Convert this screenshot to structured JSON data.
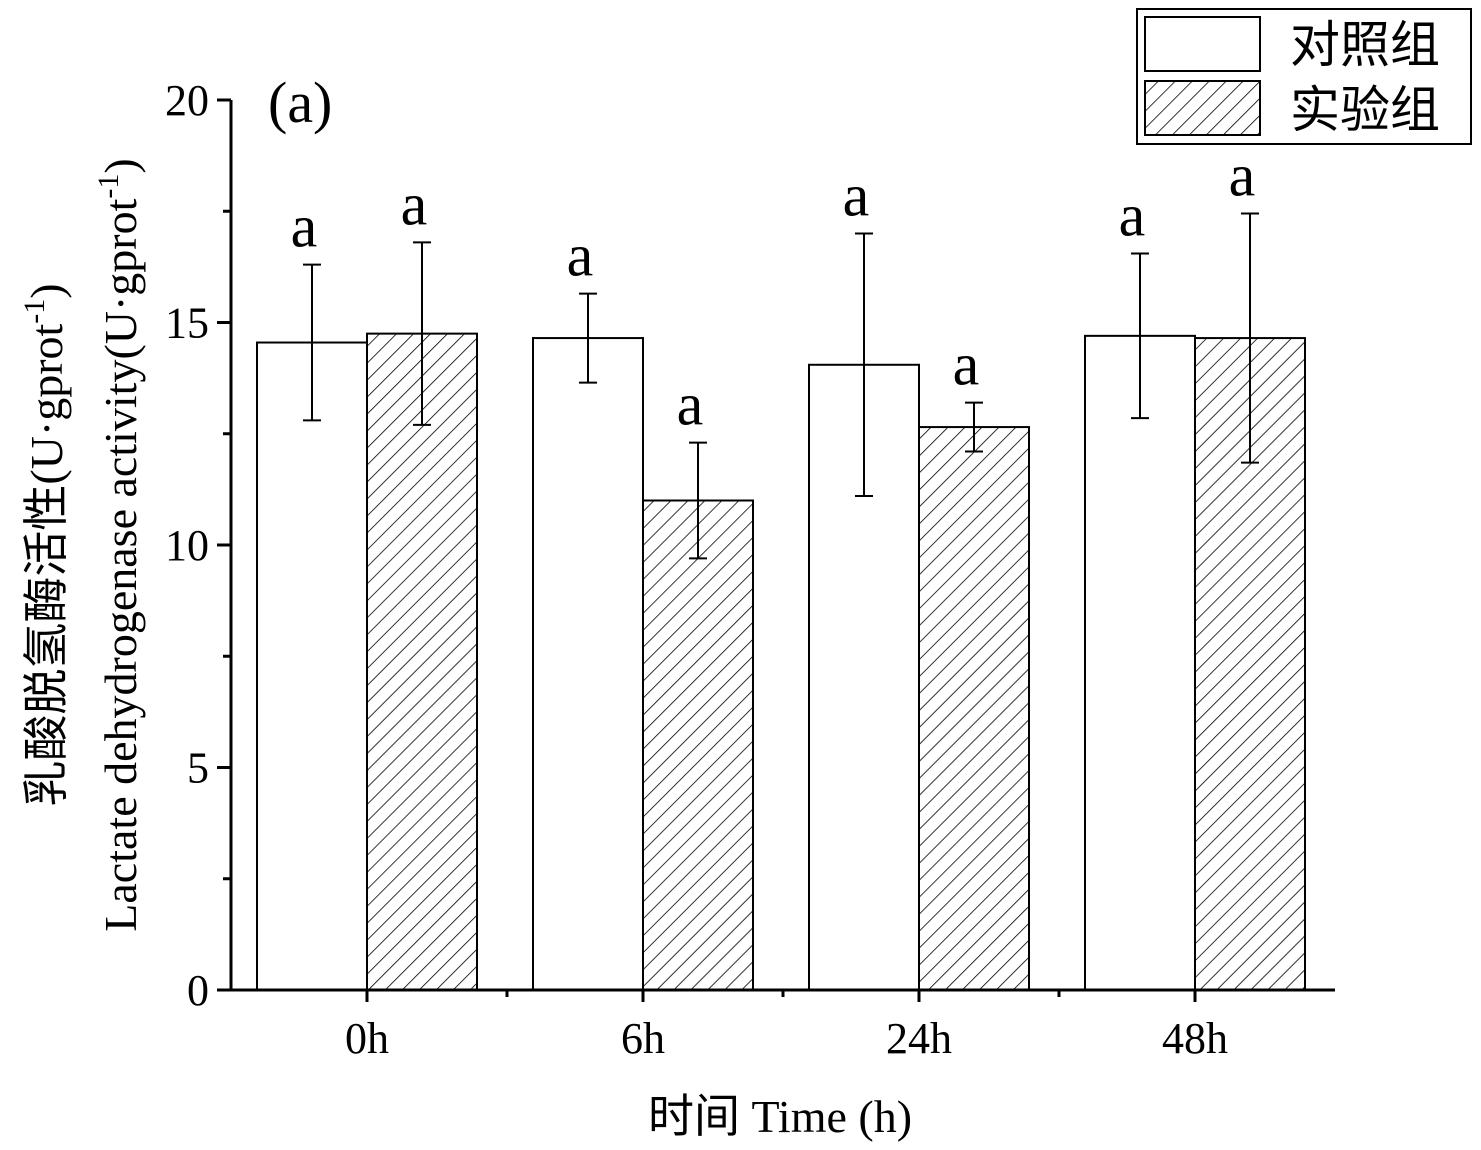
{
  "chart_data": {
    "type": "bar",
    "panel_label": "(a)",
    "categories": [
      "0h",
      "6h",
      "24h",
      "48h"
    ],
    "series": [
      {
        "name": "对照组",
        "fill": "white",
        "values": [
          14.55,
          14.65,
          14.05,
          14.7
        ],
        "errors": [
          1.75,
          1.0,
          2.95,
          1.85
        ],
        "letters": [
          "a",
          "a",
          "a",
          "a"
        ]
      },
      {
        "name": "实验组",
        "fill": "hatched",
        "values": [
          14.75,
          11.0,
          12.65,
          14.65
        ],
        "errors": [
          2.05,
          1.3,
          0.55,
          2.8
        ],
        "letters": [
          "a",
          "a",
          "a",
          "a"
        ]
      }
    ],
    "xlabel": "时间 Time (h)",
    "ylabel_cn": "乳酸脱氢酶活性(U·gprot",
    "ylabel_en": "Lactate dehydrogenase activity(U·gprot",
    "ylabel_sup": "-1",
    "ylabel_close": ")",
    "ylim": [
      0,
      20
    ],
    "yticks": [
      0,
      5,
      10,
      15,
      20
    ],
    "grid": false,
    "legend_position": "top-right",
    "colors": {
      "axis": "#000000",
      "bar_edge": "#000000",
      "bar_fill": "#ffffff",
      "hatch": "#000000"
    }
  }
}
